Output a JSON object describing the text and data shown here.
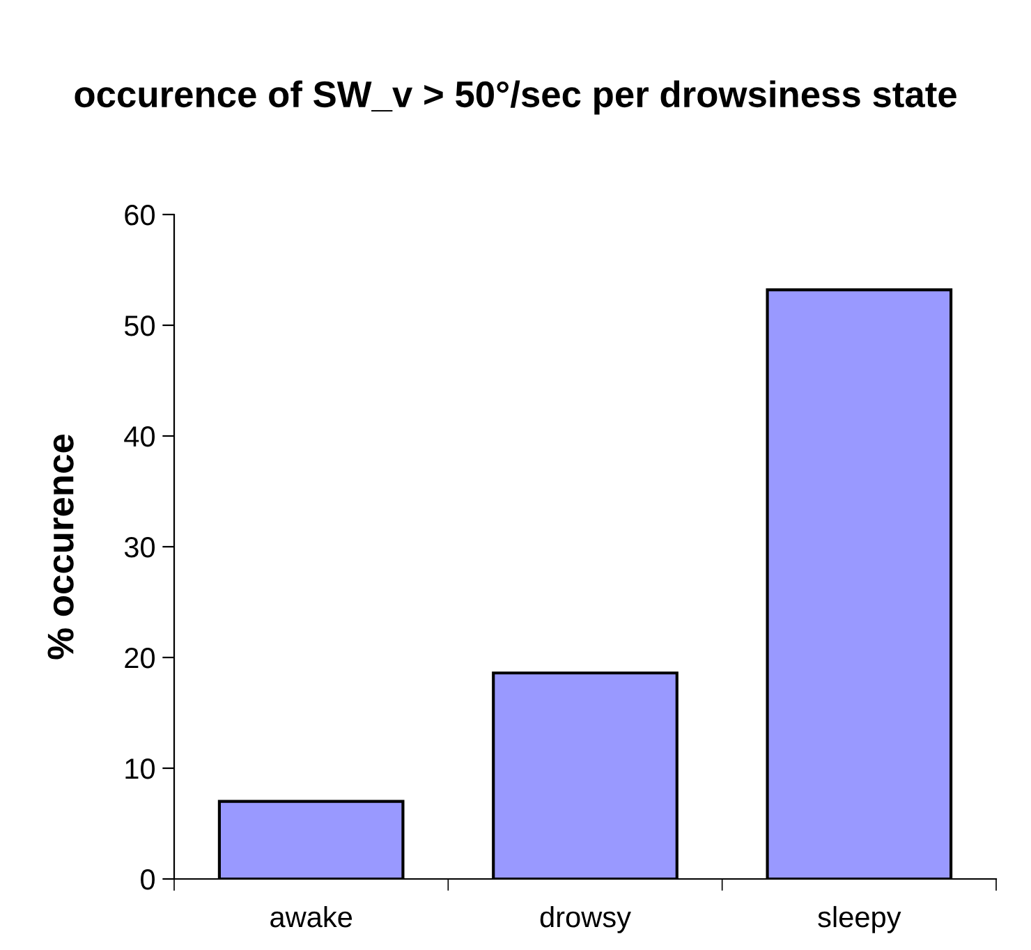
{
  "chart_data": {
    "type": "bar",
    "title": "occurence of SW_v > 50°/sec per drowsiness state",
    "ylabel": "% occurence",
    "categories": [
      "awake",
      "drowsy",
      "sleepy"
    ],
    "values": [
      7.0,
      18.6,
      53.2
    ],
    "color": "#9999ff",
    "ylim": [
      0,
      60
    ],
    "yticks": [
      0,
      10,
      20,
      30,
      40,
      50,
      60
    ],
    "grid": false,
    "legend": false
  }
}
